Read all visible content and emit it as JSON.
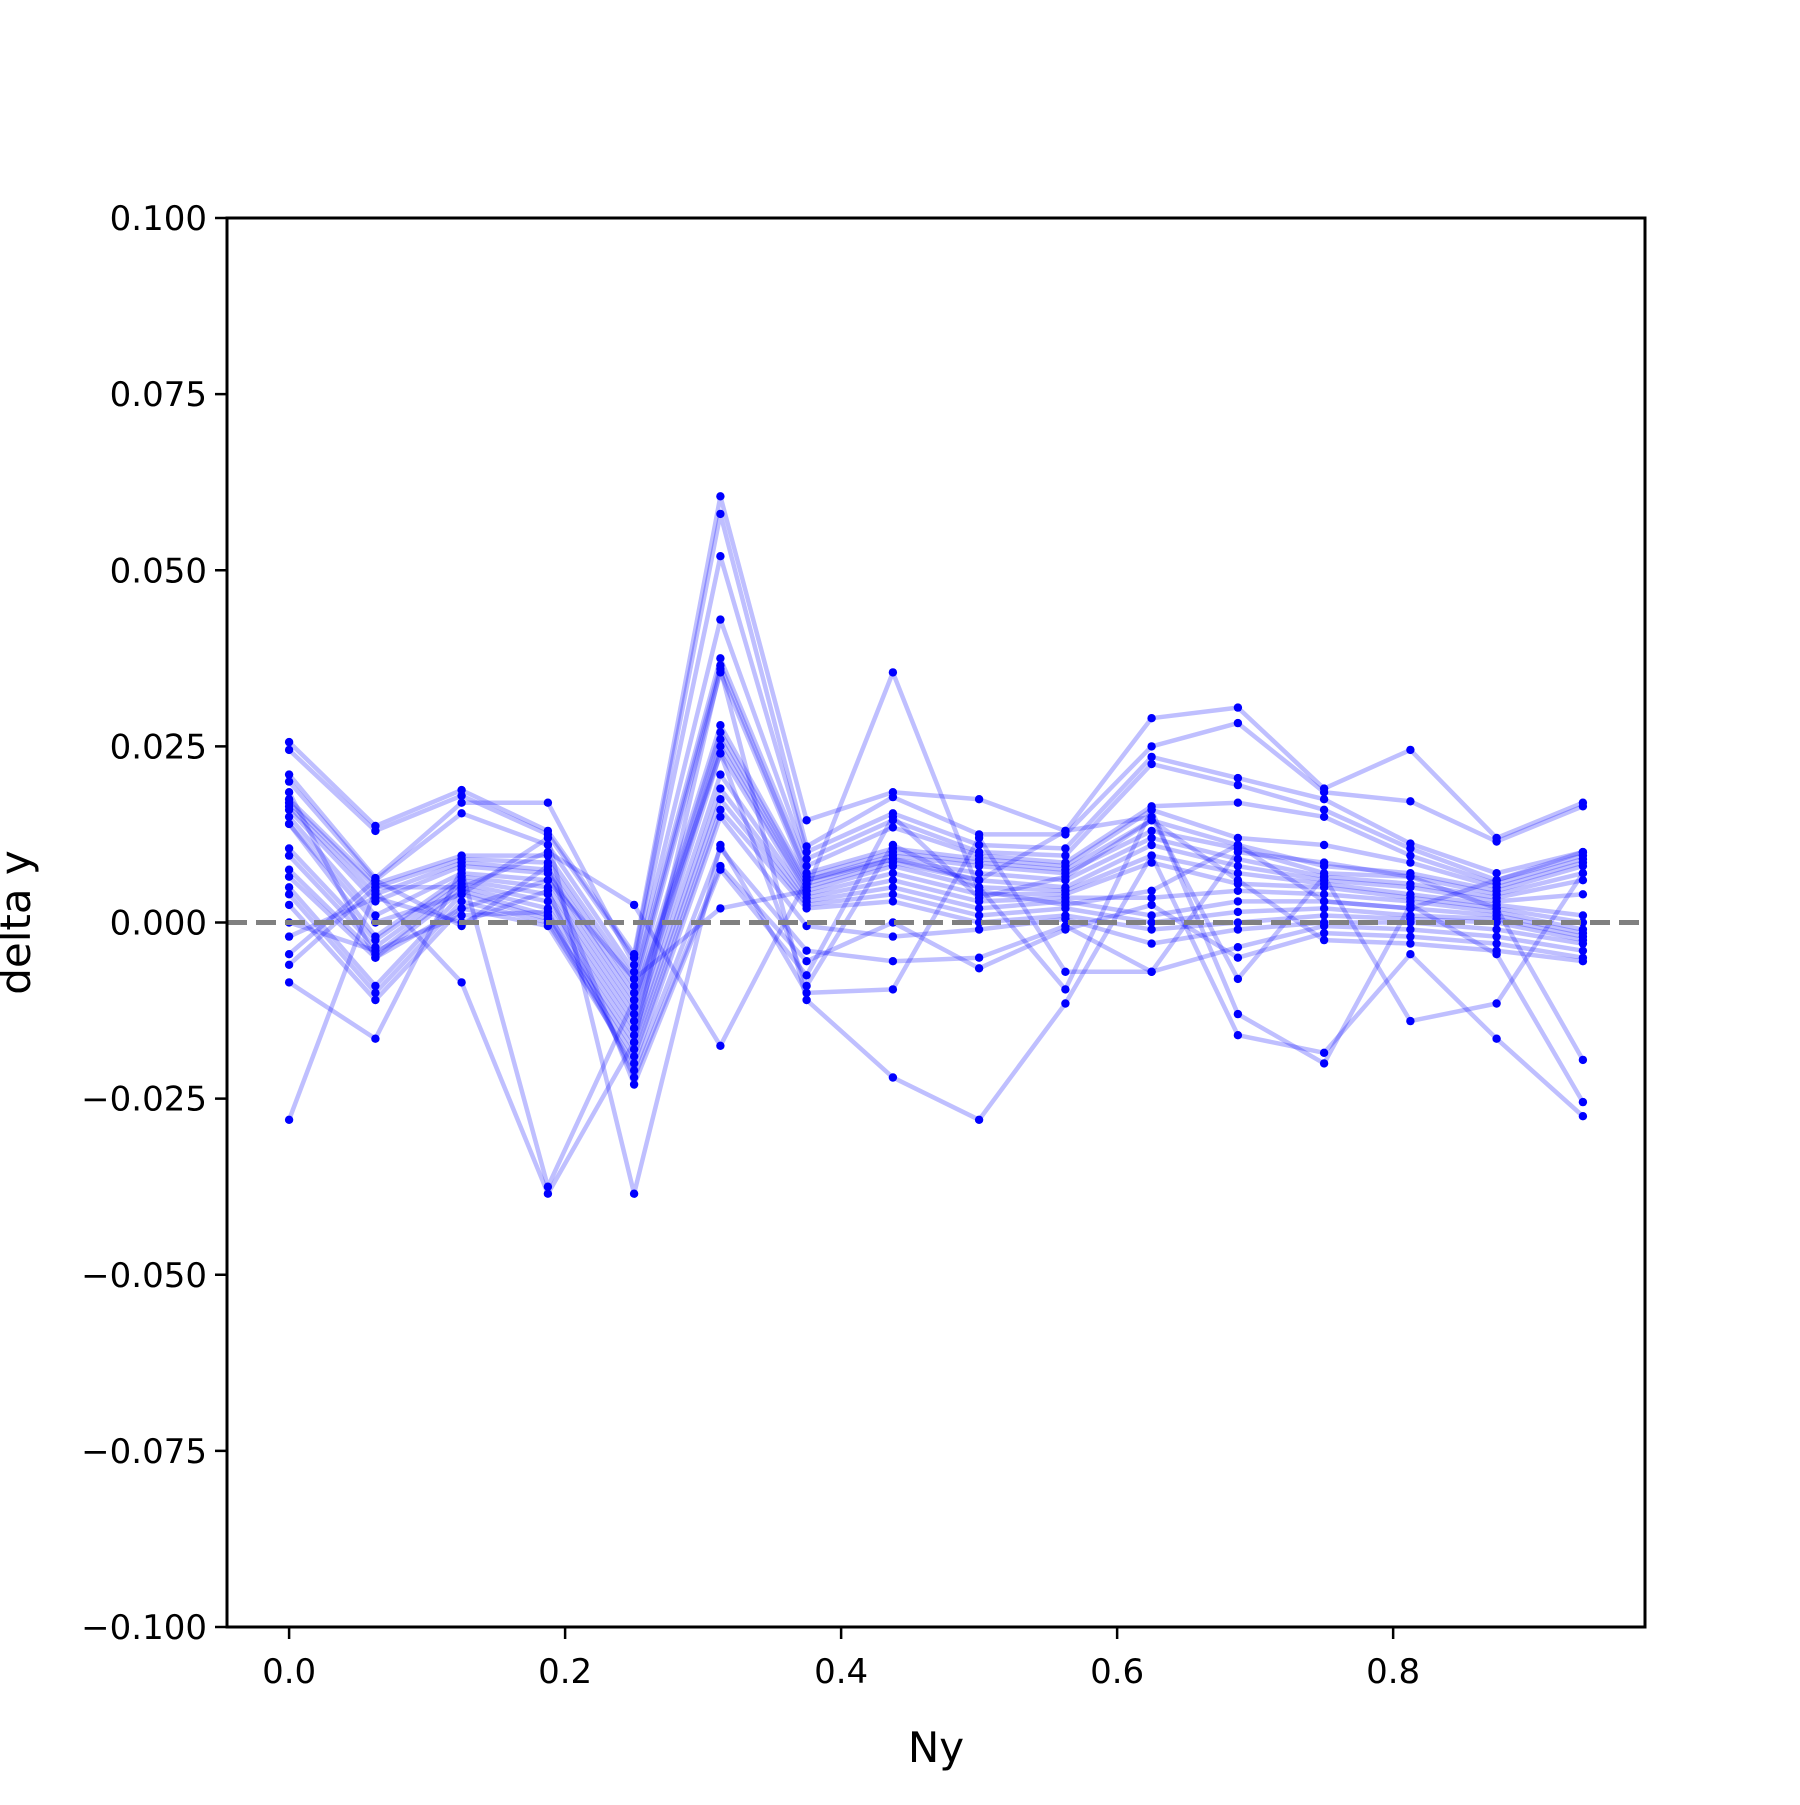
{
  "chart_data": {
    "type": "line",
    "xlabel": "Ny",
    "ylabel": "delta y",
    "xlim": [
      -0.045,
      0.9825
    ],
    "ylim": [
      -0.1,
      0.1
    ],
    "x": [
      0.0,
      0.0625,
      0.125,
      0.1875,
      0.25,
      0.3125,
      0.375,
      0.4375,
      0.5,
      0.5625,
      0.625,
      0.6875,
      0.75,
      0.8125,
      0.875,
      0.9375
    ],
    "xticks": [
      "0.0",
      "0.2",
      "0.4",
      "0.6",
      "0.8"
    ],
    "xtick_values": [
      0.0,
      0.2,
      0.4,
      0.6,
      0.8
    ],
    "yticks": [
      "0.100",
      "0.075",
      "0.050",
      "0.025",
      "0.000",
      "−0.025",
      "−0.050",
      "−0.075",
      "−0.100"
    ],
    "ytick_values": [
      0.1,
      0.075,
      0.05,
      0.025,
      0.0,
      -0.025,
      -0.05,
      -0.075,
      -0.1
    ],
    "reference_line": {
      "y": 0.0,
      "style": "dashed",
      "color": "#808080"
    },
    "grid": false,
    "legend": "none",
    "series_color": "#0000ff",
    "series": [
      {
        "values": [
          0.0256,
          0.0137,
          0.0188,
          0.013,
          -0.0045,
          0.0605,
          0.0145,
          0.0185,
          0.0175,
          0.013,
          0.029,
          0.0305,
          0.019,
          0.0245,
          0.012,
          0.017
        ]
      },
      {
        "values": [
          0.0245,
          0.013,
          0.018,
          0.0125,
          -0.005,
          0.058,
          0.0108,
          0.0178,
          0.0125,
          0.0125,
          0.025,
          0.0283,
          0.0185,
          0.0172,
          0.0115,
          0.0165
        ]
      },
      {
        "values": [
          0.021,
          0.0063,
          0.017,
          0.017,
          -0.006,
          0.052,
          0.01,
          0.0155,
          0.011,
          0.0105,
          0.0235,
          0.0205,
          0.0175,
          0.0112,
          0.007,
          0.01
        ]
      },
      {
        "values": [
          0.02,
          0.006,
          0.0155,
          0.011,
          -0.007,
          0.043,
          0.009,
          0.0145,
          0.01,
          0.0095,
          0.0225,
          0.0195,
          0.016,
          0.0105,
          0.006,
          0.0095
        ]
      },
      {
        "values": [
          0.0175,
          0.0055,
          0.0095,
          0.0095,
          -0.008,
          0.0375,
          0.008,
          0.0135,
          0.0095,
          0.0085,
          0.0165,
          0.017,
          0.015,
          0.0095,
          0.0055,
          0.009
        ]
      },
      {
        "values": [
          0.017,
          0.005,
          0.009,
          0.0085,
          -0.009,
          0.0365,
          0.007,
          0.0105,
          0.009,
          0.008,
          0.016,
          0.012,
          0.011,
          0.0085,
          0.005,
          0.0085
        ]
      },
      {
        "values": [
          0.0165,
          0.004,
          0.0085,
          0.0075,
          -0.01,
          0.0355,
          0.0065,
          0.01,
          0.0085,
          0.0075,
          0.0145,
          0.011,
          0.008,
          0.007,
          0.0045,
          0.008
        ]
      },
      {
        "values": [
          0.016,
          0.003,
          0.008,
          0.007,
          -0.011,
          0.028,
          0.006,
          0.0095,
          0.008,
          0.007,
          0.013,
          0.0105,
          0.007,
          0.0065,
          0.004,
          0.007
        ]
      },
      {
        "values": [
          0.015,
          0.001,
          0.007,
          0.006,
          -0.012,
          0.027,
          0.0055,
          0.009,
          0.007,
          0.006,
          0.012,
          0.009,
          0.0065,
          0.0055,
          0.0035,
          0.006
        ]
      },
      {
        "values": [
          0.014,
          -0.002,
          0.0065,
          0.005,
          -0.013,
          0.026,
          0.005,
          0.0085,
          0.006,
          0.005,
          0.011,
          0.008,
          0.006,
          0.005,
          0.003,
          0.004
        ]
      },
      {
        "values": [
          0.0105,
          -0.0025,
          0.006,
          0.004,
          -0.014,
          0.025,
          0.0045,
          0.008,
          0.005,
          0.0045,
          0.0095,
          0.007,
          0.0055,
          0.004,
          0.0025,
          0.001
        ]
      },
      {
        "values": [
          0.0095,
          -0.0035,
          0.0055,
          0.003,
          -0.015,
          0.024,
          0.004,
          0.007,
          0.004,
          0.004,
          0.0085,
          0.0055,
          0.005,
          0.0035,
          0.002,
          0.0
        ]
      },
      {
        "values": [
          0.0075,
          -0.0045,
          0.005,
          0.002,
          -0.016,
          0.021,
          0.0035,
          0.006,
          0.003,
          0.0035,
          0.0035,
          0.0045,
          0.004,
          0.003,
          0.0015,
          -0.001
        ]
      },
      {
        "values": [
          0.0065,
          -0.005,
          0.0045,
          0.001,
          -0.017,
          0.019,
          0.003,
          0.005,
          0.002,
          0.003,
          0.001,
          0.003,
          0.003,
          0.002,
          0.001,
          -0.0015
        ]
      },
      {
        "values": [
          0.005,
          -0.009,
          0.004,
          0.0005,
          -0.018,
          0.0175,
          0.0025,
          0.004,
          0.001,
          0.002,
          0.0,
          0.0015,
          0.002,
          0.001,
          0.0005,
          -0.002
        ]
      },
      {
        "values": [
          0.004,
          -0.01,
          0.003,
          0.0,
          -0.019,
          0.016,
          0.002,
          0.003,
          0.0,
          0.001,
          -0.001,
          0.0,
          0.001,
          0.0005,
          0.0,
          -0.0025
        ]
      },
      {
        "values": [
          0.0025,
          -0.011,
          0.002,
          -0.0005,
          -0.02,
          0.015,
          -0.0005,
          -0.002,
          -0.001,
          0.0005,
          -0.003,
          -0.001,
          0.0,
          0.0,
          -0.001,
          -0.003
        ]
      },
      {
        "values": [
          0.0,
          -0.004,
          0.001,
          0.0015,
          -0.021,
          0.0105,
          -0.004,
          -0.0055,
          -0.005,
          -0.0005,
          -0.007,
          -0.0035,
          -0.0005,
          -0.001,
          -0.002,
          -0.004
        ]
      },
      {
        "values": [
          -0.002,
          0.0035,
          0.0,
          0.0045,
          -0.022,
          0.008,
          -0.0055,
          0.0,
          -0.0065,
          -0.001,
          0.0025,
          -0.005,
          -0.0015,
          -0.002,
          -0.003,
          -0.005
        ]
      },
      {
        "values": [
          -0.0045,
          0.006,
          -0.0005,
          0.008,
          -0.023,
          0.0075,
          -0.0075,
          0.015,
          0.0035,
          0.0065,
          0.0145,
          0.006,
          -0.0025,
          -0.003,
          -0.004,
          -0.0055
        ]
      },
      {
        "values": [
          -0.006,
          0.005,
          0.005,
          0.01,
          0.0025,
          -0.0175,
          0.006,
          0.009,
          0.006,
          0.013,
          0.015,
          -0.008,
          0.0065,
          -0.014,
          -0.0115,
          0.007
        ]
      },
      {
        "values": [
          -0.0085,
          -0.0165,
          0.0075,
          -0.0375,
          -0.011,
          0.024,
          -0.009,
          0.011,
          0.005,
          -0.0095,
          0.016,
          -0.013,
          -0.02,
          0.0025,
          -0.0045,
          -0.0255
        ]
      },
      {
        "values": [
          -0.028,
          0.0045,
          -0.0085,
          -0.0385,
          -0.017,
          0.036,
          -0.011,
          -0.022,
          -0.028,
          -0.0115,
          0.0095,
          -0.016,
          -0.0185,
          -0.0045,
          -0.0165,
          -0.0275
        ]
      },
      {
        "values": [
          0.014,
          0.0,
          0.004,
          0.012,
          -0.0385,
          0.011,
          -0.01,
          -0.0095,
          0.012,
          -0.007,
          -0.007,
          0.01,
          0.0085,
          0.0065,
          0.002,
          -0.0195
        ]
      },
      {
        "values": [
          0.0185,
          -0.005,
          0.002,
          0.006,
          -0.008,
          0.002,
          0.0045,
          0.0355,
          0.0045,
          0.0025,
          0.0045,
          0.011,
          0.003,
          0.002,
          0.006,
          0.01
        ]
      }
    ]
  }
}
